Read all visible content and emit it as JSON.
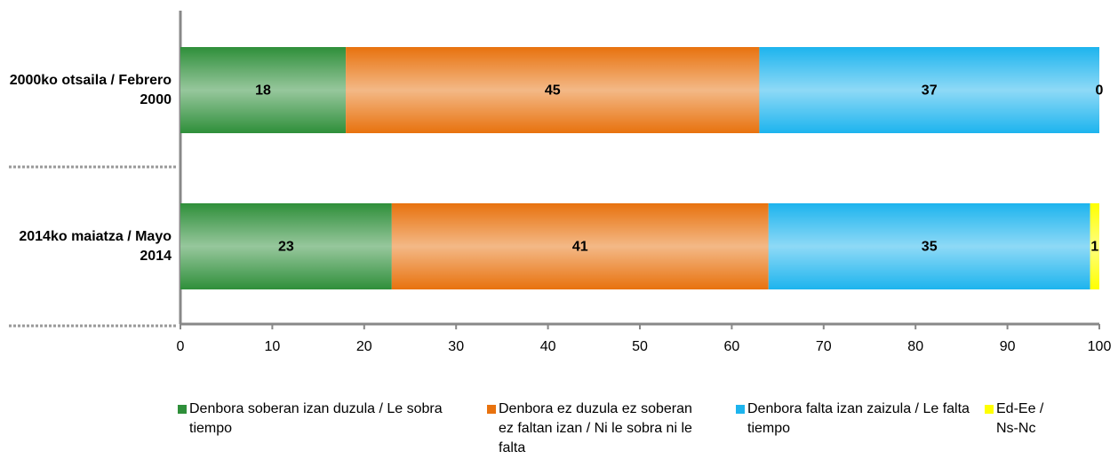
{
  "chart_data": {
    "type": "stacked_barh",
    "categories": [
      "2000ko otsaila / Febrero 2000",
      "2014ko maiatza / Mayo 2014"
    ],
    "series": [
      {
        "name": "Denbora soberan izan duzula / Le sobra tiempo",
        "color": "#2f8f3a",
        "values": [
          18,
          23
        ]
      },
      {
        "name": "Denbora ez duzula ez soberan ez faltan izan / Ni le sobra ni le falta",
        "color": "#e8720e",
        "values": [
          45,
          41
        ]
      },
      {
        "name": "Denbora falta izan zaizula / Le falta tiempo",
        "color": "#1db4ee",
        "values": [
          37,
          35
        ]
      },
      {
        "name": "Ed-Ee / Ns-Nc",
        "color": "#ffff00",
        "values": [
          0,
          1
        ]
      }
    ],
    "xlim": [
      0,
      100
    ],
    "xticks": [
      0,
      10,
      20,
      30,
      40,
      50,
      60,
      70,
      80,
      90,
      100
    ],
    "legend": "bottom"
  }
}
